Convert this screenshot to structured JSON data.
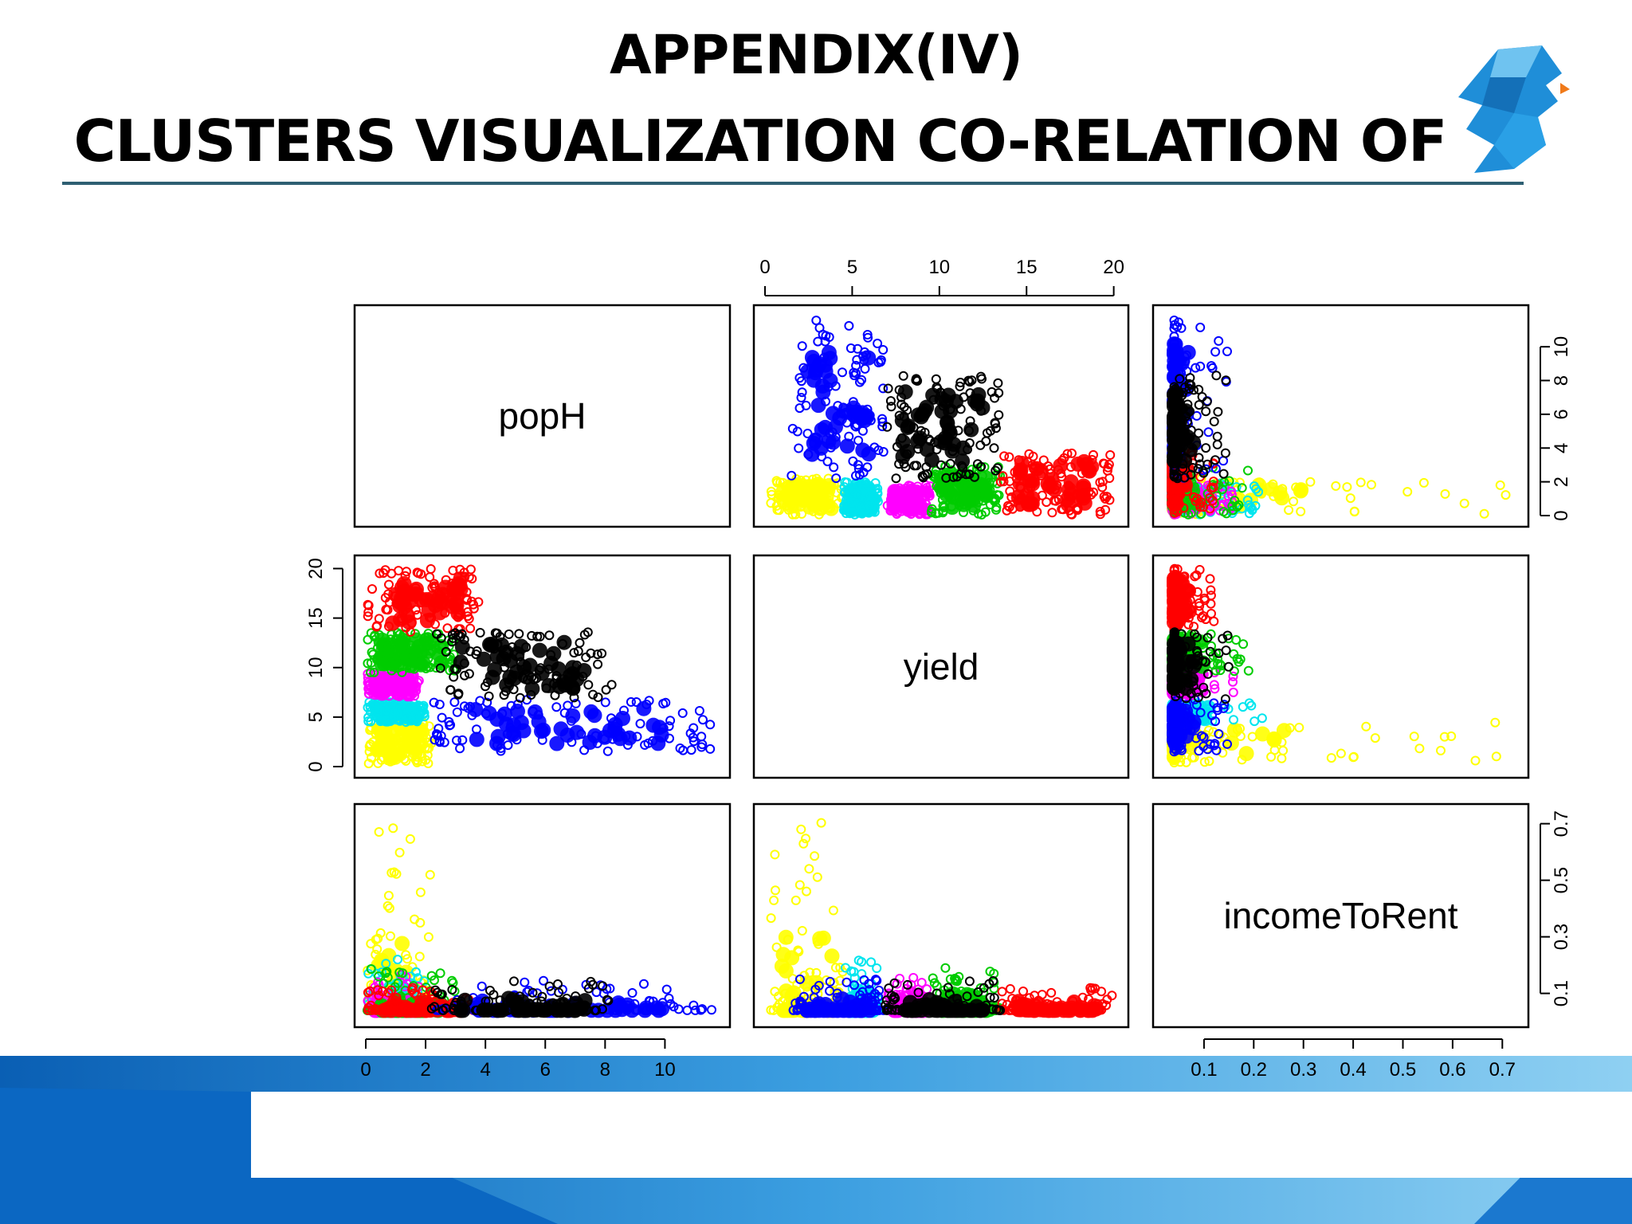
{
  "slide": {
    "title_line1": "APPENDIX(IV)",
    "title_line2": "CLUSTERS VISUALIZATION CO-RELATION OF"
  },
  "colors": {
    "rule": "#2e5f72",
    "band_dark": "#0a5fb4",
    "band_light": "#5bb6e8",
    "logo": "#1f8ed8"
  },
  "icons": [
    "brain-head-logo-icon"
  ],
  "chart_data": {
    "type": "scatter",
    "variables": [
      "popH",
      "yield",
      "incomeToRent"
    ],
    "ranges": {
      "popH": [
        0,
        11.8
      ],
      "yield": [
        0,
        20.2
      ],
      "incomeToRent": [
        0.02,
        0.73
      ]
    },
    "ticks": {
      "popH": [
        "0",
        "2",
        "4",
        "6",
        "8",
        "10"
      ],
      "yield": [
        "0",
        "5",
        "10",
        "15",
        "20"
      ],
      "incomeToRent_bottom": [
        "0.1",
        "0.2",
        "0.3",
        "0.4",
        "0.5",
        "0.6",
        "0.7"
      ],
      "incomeToRent_right": [
        "0.1",
        "0.3",
        "0.5",
        "0.7"
      ],
      "popH_right": [
        "0",
        "2",
        "4",
        "6",
        "8",
        "10"
      ]
    },
    "clusters": [
      {
        "color": "#ffff00",
        "popH": [
          0.05,
          2.2
        ],
        "yield": [
          0.3,
          4.5
        ],
        "incomeToRent": [
          0.04,
          0.73
        ]
      },
      {
        "color": "#00e5ee",
        "popH": [
          0.05,
          2.0
        ],
        "yield": [
          4.5,
          6.5
        ],
        "incomeToRent": [
          0.04,
          0.22
        ]
      },
      {
        "color": "#ff00ff",
        "popH": [
          0.05,
          1.8
        ],
        "yield": [
          7.0,
          9.5
        ],
        "incomeToRent": [
          0.04,
          0.17
        ]
      },
      {
        "color": "#00cc00",
        "popH": [
          0.05,
          3.0
        ],
        "yield": [
          9.5,
          13.5
        ],
        "incomeToRent": [
          0.04,
          0.19
        ]
      },
      {
        "color": "#ff0000",
        "popH": [
          0.05,
          3.8
        ],
        "yield": [
          13.5,
          20.0
        ],
        "incomeToRent": [
          0.04,
          0.12
        ]
      },
      {
        "color": "#0000ff",
        "popH": [
          2.2,
          11.6
        ],
        "yield": [
          1.5,
          6.8
        ],
        "incomeToRent": [
          0.04,
          0.15
        ]
      },
      {
        "color": "#000000",
        "popH": [
          2.2,
          8.3
        ],
        "yield": [
          6.8,
          13.6
        ],
        "incomeToRent": [
          0.04,
          0.15
        ]
      }
    ]
  }
}
